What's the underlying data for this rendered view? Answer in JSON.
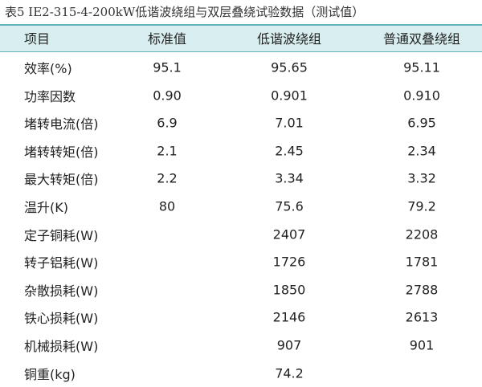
{
  "title": "表5 IE2-315-4-200kW低谐波绕组与双层叠绕试验数据（测试值）",
  "table": {
    "header": [
      "项目",
      "标准值",
      "低谐波绕组",
      "普通双叠绕组"
    ],
    "rows": [
      [
        "效率(%)",
        "95.1",
        "95.65",
        "95.11"
      ],
      [
        "功率因数",
        "0.90",
        "0.901",
        "0.910"
      ],
      [
        "堵转电流(倍)",
        "6.9",
        "7.01",
        "6.95"
      ],
      [
        "堵转转矩(倍)",
        "2.1",
        "2.45",
        "2.34"
      ],
      [
        "最大转矩(倍)",
        "2.2",
        "3.34",
        "3.32"
      ],
      [
        "温升(K)",
        "80",
        "75.6",
        "79.2"
      ],
      [
        "定子铜耗(W)",
        null,
        "2407",
        "2208"
      ],
      [
        "转子铝耗(W)",
        null,
        "1726",
        "1781"
      ],
      [
        "杂散损耗(W)",
        null,
        "1850",
        "2788"
      ],
      [
        "铁心损耗(W)",
        null,
        "2146",
        "2613"
      ],
      [
        "机械损耗(W)",
        null,
        "907",
        "901"
      ],
      [
        "铜重(kg)",
        null,
        "74.2",
        null
      ]
    ]
  }
}
